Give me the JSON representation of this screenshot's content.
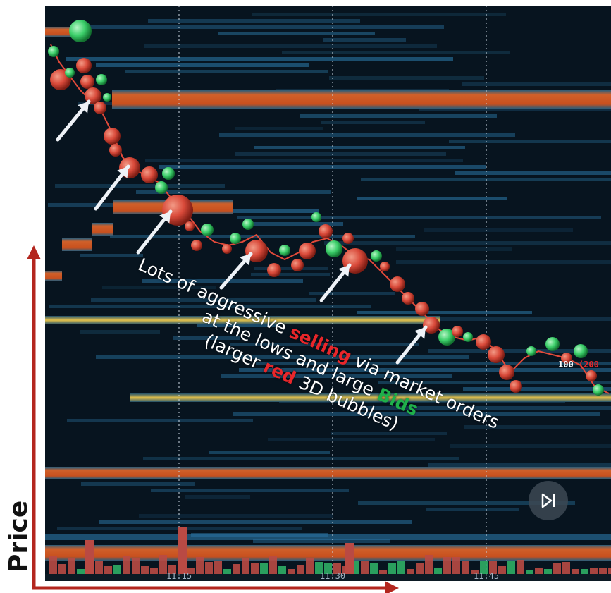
{
  "y_axis_label": "Price",
  "x_ticks": [
    "11:15",
    "11:30",
    "11:45"
  ],
  "annotation": {
    "line1_pre": "Lots of aggressive ",
    "line1_red": "selling",
    "line1_post": " via market orders",
    "line2_pre": "at the lows and large ",
    "line2_green": "Bids",
    "line3_pre": "(larger ",
    "line3_red": "red",
    "line3_post": " 3D bubbles)"
  },
  "size_label": {
    "value": "100",
    "paren_open": "(",
    "paren_value": "200"
  },
  "colors": {
    "background": "#07141f",
    "sell_bubble": "#d94a3a",
    "buy_bubble": "#3ccf6a",
    "liquidity_high": "#c8501e",
    "liquidity_mid": "#d8b23a",
    "liquidity_low": "#1f6e9c",
    "arrow": "#eef2f7",
    "axis_arrow": "#b3261e"
  },
  "icons": {
    "play_button": "skip-to-end-icon"
  }
}
